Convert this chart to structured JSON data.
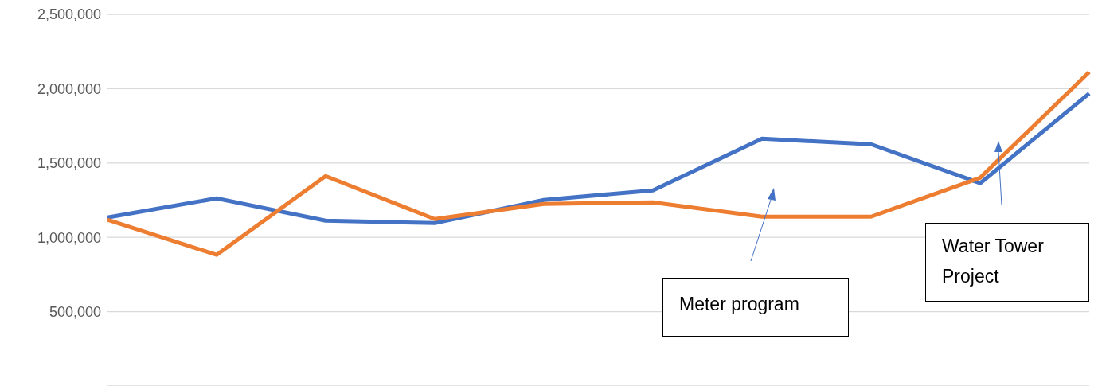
{
  "chart_data": {
    "type": "line",
    "categories": [
      null,
      null,
      null,
      null,
      null,
      null,
      null,
      null,
      null,
      null
    ],
    "series": [
      {
        "color": "#4472c4",
        "values": [
          1134000,
          1262000,
          1112000,
          1096000,
          1251000,
          1316000,
          1663000,
          1626000,
          1364000,
          1968000
        ]
      },
      {
        "color": "#ed7d31",
        "values": [
          1118000,
          882000,
          1412000,
          1123000,
          1225000,
          1235000,
          1139000,
          1139000,
          1401000,
          2112000
        ]
      }
    ],
    "ylim": [
      0,
      2500000
    ],
    "yticks": [
      {
        "value": 500000,
        "label": "500,000"
      },
      {
        "value": 1000000,
        "label": "1,000,000"
      },
      {
        "value": 1500000,
        "label": "1,500,000"
      },
      {
        "value": 2000000,
        "label": "2,000,000"
      },
      {
        "value": 2500000,
        "label": "2,500,000"
      }
    ],
    "grid": "y",
    "legend": false,
    "marker": "none",
    "line_style": "solid",
    "annotations": [
      "Meter program",
      "Water Tower Project"
    ]
  }
}
